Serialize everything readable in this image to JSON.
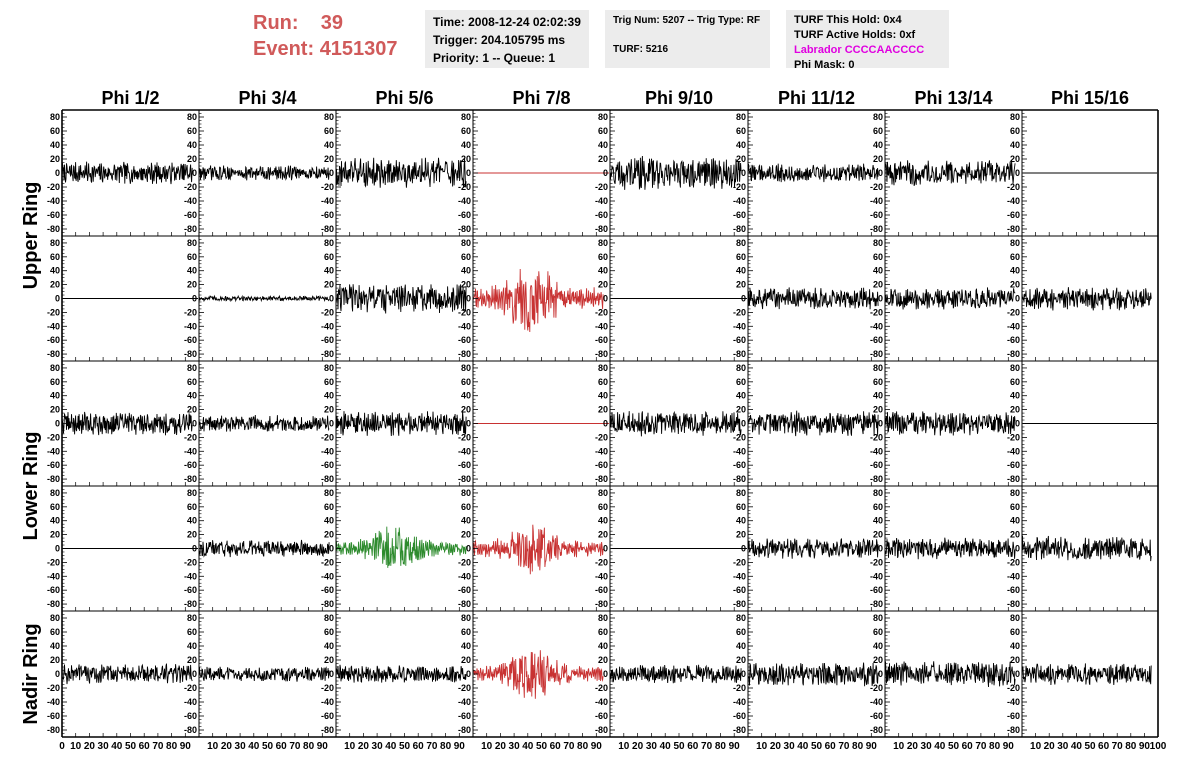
{
  "header": {
    "run_label": "Run:",
    "run_value": "39",
    "event_label": "Event:",
    "event_value": "4151307",
    "time": "Time: 2008-12-24 02:02:39",
    "trigger": "Trigger: 204.105795 ms",
    "priority": "Priority: 1 -- Queue: 1",
    "trig_num": "Trig Num: 5207 -- Trig Type: RF",
    "turf": "TURF: 5216",
    "turf_this_hold": "TURF This Hold: 0x4",
    "turf_active_holds": "TURF Active Holds: 0xf",
    "labrador": "Labrador CCCCAACCCC",
    "phi_mask": "Phi Mask: 0"
  },
  "colors": {
    "run_text": "#d05a5a",
    "labrador_text": "#e000e0",
    "trace_default": "#000000",
    "trace_red": "#c83232",
    "trace_green": "#2e8b2e"
  },
  "chart_data": {
    "type": "line",
    "column_headers": [
      "Phi 1/2",
      "Phi 3/4",
      "Phi 5/6",
      "Phi 7/8",
      "Phi 9/10",
      "Phi 11/12",
      "Phi 13/14",
      "Phi 15/16"
    ],
    "ring_labels": [
      {
        "name": "Upper Ring",
        "rows": [
          0,
          1
        ]
      },
      {
        "name": "Lower Ring",
        "rows": [
          2,
          3
        ]
      },
      {
        "name": "Nadir Ring",
        "rows": [
          4,
          4
        ]
      }
    ],
    "ylim": [
      -90,
      90
    ],
    "y_ticks": [
      -80,
      -60,
      -40,
      -20,
      0,
      20,
      40,
      60,
      80
    ],
    "xlim": [
      0,
      100
    ],
    "x_ticks": [
      0,
      10,
      20,
      30,
      40,
      50,
      60,
      70,
      80,
      90,
      100
    ],
    "x_tick_labels": [
      "0",
      "10",
      "20",
      "30",
      "40",
      "50",
      "60",
      "70",
      "80",
      "90",
      "100"
    ],
    "traces": [
      [
        {
          "amp": 13,
          "color": "black"
        },
        {
          "amp": 9,
          "color": "black"
        },
        {
          "amp": 18,
          "color": "black"
        },
        {
          "amp": 0,
          "color": "red"
        },
        {
          "amp": 20,
          "color": "black"
        },
        {
          "amp": 11,
          "color": "black"
        },
        {
          "amp": 15,
          "color": "black"
        },
        {
          "amp": 0,
          "color": "black"
        }
      ],
      [
        {
          "amp": 0,
          "color": "black"
        },
        {
          "amp": 3,
          "color": "black"
        },
        {
          "amp": 18,
          "color": "black"
        },
        {
          "amp": 28,
          "color": "red"
        },
        {
          "amp": 0,
          "color": "black"
        },
        {
          "amp": 13,
          "color": "black"
        },
        {
          "amp": 13,
          "color": "black"
        },
        {
          "amp": 14,
          "color": "black"
        }
      ],
      [
        {
          "amp": 14,
          "color": "black"
        },
        {
          "amp": 10,
          "color": "black"
        },
        {
          "amp": 15,
          "color": "black"
        },
        {
          "amp": 0,
          "color": "red"
        },
        {
          "amp": 15,
          "color": "black"
        },
        {
          "amp": 15,
          "color": "black"
        },
        {
          "amp": 14,
          "color": "black"
        },
        {
          "amp": 0,
          "color": "black"
        }
      ],
      [
        {
          "amp": 0,
          "color": "black"
        },
        {
          "amp": 10,
          "color": "black"
        },
        {
          "amp": 18,
          "color": "green"
        },
        {
          "amp": 20,
          "color": "red"
        },
        {
          "amp": 0,
          "color": "black"
        },
        {
          "amp": 12,
          "color": "black"
        },
        {
          "amp": 13,
          "color": "black"
        },
        {
          "amp": 15,
          "color": "black"
        }
      ],
      [
        {
          "amp": 12,
          "color": "black"
        },
        {
          "amp": 9,
          "color": "black"
        },
        {
          "amp": 11,
          "color": "black"
        },
        {
          "amp": 20,
          "color": "red"
        },
        {
          "amp": 11,
          "color": "black"
        },
        {
          "amp": 14,
          "color": "black"
        },
        {
          "amp": 15,
          "color": "black"
        },
        {
          "amp": 13,
          "color": "black"
        }
      ]
    ]
  }
}
